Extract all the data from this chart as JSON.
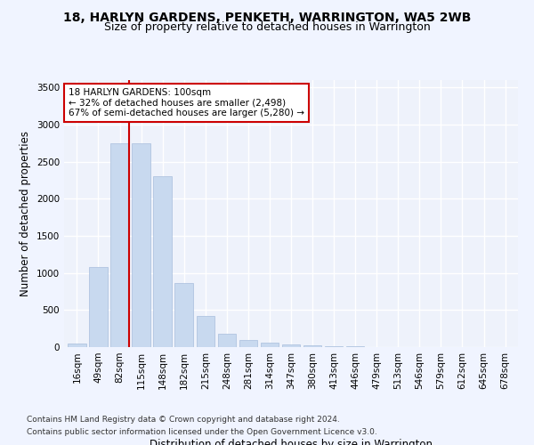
{
  "title": "18, HARLYN GARDENS, PENKETH, WARRINGTON, WA5 2WB",
  "subtitle": "Size of property relative to detached houses in Warrington",
  "xlabel": "Distribution of detached houses by size in Warrington",
  "ylabel": "Number of detached properties",
  "categories": [
    "16sqm",
    "49sqm",
    "82sqm",
    "115sqm",
    "148sqm",
    "182sqm",
    "215sqm",
    "248sqm",
    "281sqm",
    "314sqm",
    "347sqm",
    "380sqm",
    "413sqm",
    "446sqm",
    "479sqm",
    "513sqm",
    "546sqm",
    "579sqm",
    "612sqm",
    "645sqm",
    "678sqm"
  ],
  "values": [
    50,
    1080,
    2750,
    2750,
    2300,
    870,
    420,
    175,
    100,
    65,
    35,
    20,
    10,
    8,
    5,
    4,
    3,
    2,
    2,
    1,
    1
  ],
  "bar_color": "#c8d9ef",
  "bar_edge_color": "#a8bedd",
  "vline_x_index": 2.42,
  "vline_color": "#cc0000",
  "annotation_text": "18 HARLYN GARDENS: 100sqm\n← 32% of detached houses are smaller (2,498)\n67% of semi-detached houses are larger (5,280) →",
  "annotation_box_color": "#ffffff",
  "annotation_box_edge_color": "#cc0000",
  "ylim": [
    0,
    3600
  ],
  "yticks": [
    0,
    500,
    1000,
    1500,
    2000,
    2500,
    3000,
    3500
  ],
  "footnote1": "Contains HM Land Registry data © Crown copyright and database right 2024.",
  "footnote2": "Contains public sector information licensed under the Open Government Licence v3.0.",
  "bg_color": "#eef2fb",
  "grid_color": "#ffffff",
  "title_fontsize": 10,
  "subtitle_fontsize": 9,
  "axis_label_fontsize": 8.5,
  "tick_fontsize": 7.5,
  "footnote_fontsize": 6.5
}
